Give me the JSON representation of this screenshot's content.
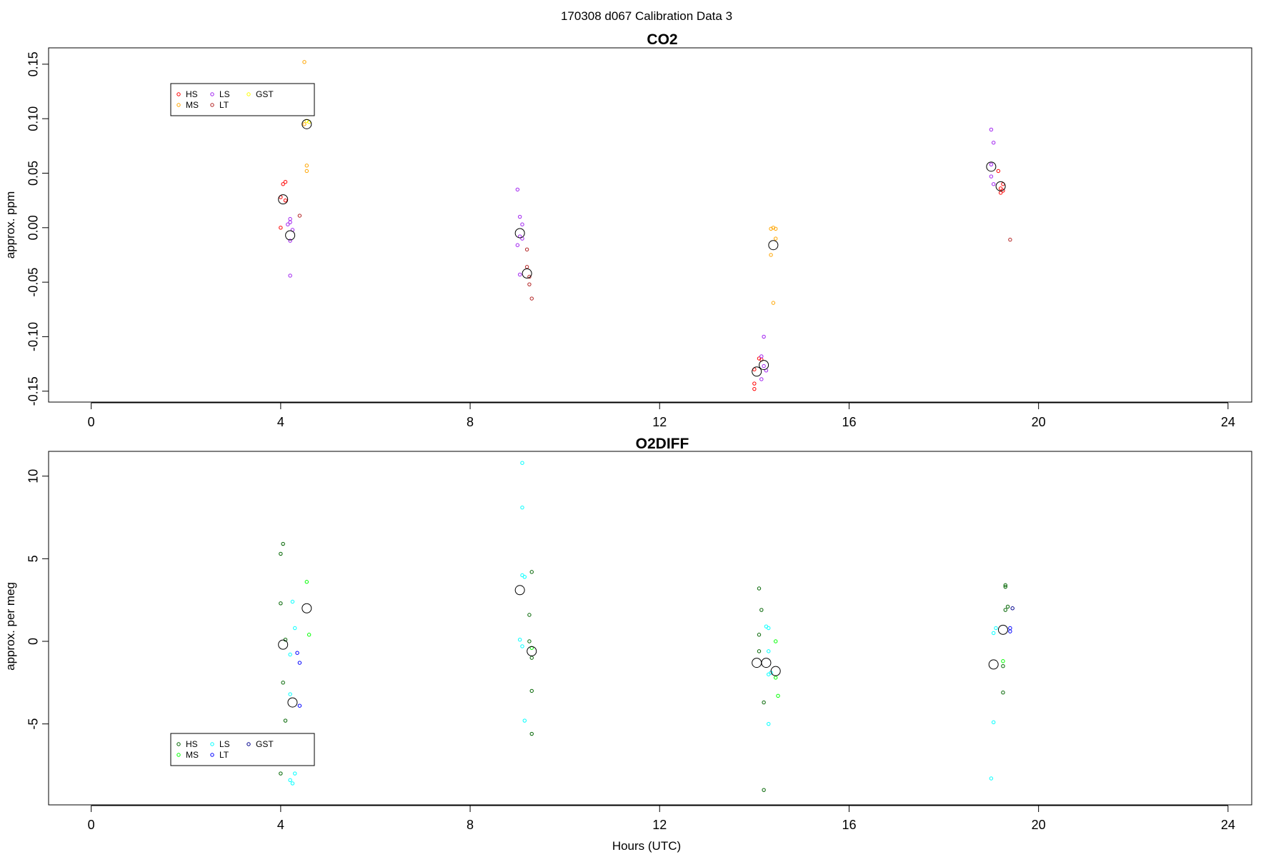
{
  "figure": {
    "suptitle": "170308   d067   Calibration Data 3",
    "xlabel": "Hours (UTC)"
  },
  "chart_data": [
    {
      "type": "scatter",
      "title": "CO2",
      "xlabel": "",
      "ylabel": "approx. ppm",
      "xlim": [
        -0.9,
        24.5
      ],
      "ylim": [
        -0.16,
        0.165
      ],
      "xticks": [
        0,
        4,
        8,
        12,
        16,
        20,
        24
      ],
      "yticks": [
        0.15,
        0.1,
        0.05,
        0.0,
        -0.05,
        -0.1,
        -0.15
      ],
      "ytick_labels": [
        "0.15",
        "0.10",
        "0.05",
        "0.00",
        "-0.05",
        "-0.10",
        "-0.15"
      ],
      "grid": false,
      "legend": {
        "placement": "top-left",
        "columns": 3,
        "entries": [
          {
            "name": "HS",
            "color": "#ff0000"
          },
          {
            "name": "MS",
            "color": "#ffa500"
          },
          {
            "name": "LS",
            "color": "#a020f0"
          },
          {
            "name": "LT",
            "color": "#b22222"
          },
          {
            "name": "GST",
            "color": "#ffff00"
          }
        ]
      },
      "series": [
        {
          "name": "HS",
          "color": "#ff0000",
          "points": [
            [
              4.0,
              0.028
            ],
            [
              4.05,
              0.04
            ],
            [
              4.1,
              0.042
            ],
            [
              4.0,
              0.0
            ],
            [
              4.1,
              0.025
            ],
            [
              14.0,
              -0.143
            ],
            [
              14.0,
              -0.148
            ],
            [
              14.1,
              -0.12
            ],
            [
              14.15,
              -0.121
            ],
            [
              14.0,
              -0.13
            ],
            [
              19.2,
              0.036
            ],
            [
              19.25,
              0.04
            ],
            [
              19.2,
              0.032
            ],
            [
              19.15,
              0.052
            ],
            [
              19.25,
              0.034
            ]
          ]
        },
        {
          "name": "MS",
          "color": "#ffa500",
          "points": [
            [
              4.5,
              0.152
            ],
            [
              4.55,
              0.057
            ],
            [
              4.55,
              0.052
            ],
            [
              4.5,
              0.095
            ],
            [
              14.35,
              -0.025
            ],
            [
              14.4,
              -0.069
            ],
            [
              14.45,
              -0.01
            ],
            [
              14.4,
              0.0
            ],
            [
              14.45,
              -0.001
            ],
            [
              14.35,
              -0.001
            ]
          ]
        },
        {
          "name": "LS",
          "color": "#a020f0",
          "points": [
            [
              4.2,
              -0.044
            ],
            [
              4.2,
              0.008
            ],
            [
              4.15,
              0.003
            ],
            [
              4.2,
              0.005
            ],
            [
              4.25,
              -0.002
            ],
            [
              4.2,
              -0.012
            ],
            [
              9.0,
              0.035
            ],
            [
              9.05,
              0.01
            ],
            [
              9.1,
              0.003
            ],
            [
              9.05,
              -0.008
            ],
            [
              9.0,
              -0.016
            ],
            [
              9.1,
              -0.01
            ],
            [
              9.05,
              -0.043
            ],
            [
              14.2,
              -0.1
            ],
            [
              14.15,
              -0.118
            ],
            [
              14.25,
              -0.131
            ],
            [
              14.2,
              -0.127
            ],
            [
              14.15,
              -0.139
            ],
            [
              19.0,
              0.09
            ],
            [
              19.05,
              0.078
            ],
            [
              19.0,
              0.058
            ],
            [
              19.0,
              0.047
            ],
            [
              19.05,
              0.04
            ]
          ]
        },
        {
          "name": "LT",
          "color": "#b22222",
          "points": [
            [
              4.4,
              0.011
            ],
            [
              9.2,
              -0.02
            ],
            [
              9.25,
              -0.052
            ],
            [
              9.3,
              -0.065
            ],
            [
              9.2,
              -0.036
            ],
            [
              9.25,
              -0.045
            ],
            [
              19.4,
              -0.011
            ]
          ]
        },
        {
          "name": "GST",
          "color": "#ffff00",
          "points": [
            [
              4.55,
              0.098
            ],
            [
              4.6,
              0.097
            ]
          ]
        }
      ],
      "means": [
        [
          4.05,
          0.026
        ],
        [
          4.2,
          -0.007
        ],
        [
          4.55,
          0.095
        ],
        [
          9.05,
          -0.005
        ],
        [
          9.2,
          -0.042
        ],
        [
          14.05,
          -0.132
        ],
        [
          14.2,
          -0.126
        ],
        [
          14.4,
          -0.016
        ],
        [
          19.0,
          0.056
        ],
        [
          19.2,
          0.038
        ]
      ]
    },
    {
      "type": "scatter",
      "title": "O2DIFF",
      "xlabel": "Hours (UTC)",
      "ylabel": "approx. per meg",
      "xlim": [
        -0.9,
        24.5
      ],
      "ylim": [
        -9.9,
        11.5
      ],
      "xticks": [
        0,
        4,
        8,
        12,
        16,
        20,
        24
      ],
      "yticks": [
        10,
        5,
        0,
        -5
      ],
      "ytick_labels": [
        "10",
        "5",
        "0",
        "-5"
      ],
      "grid": false,
      "legend": {
        "placement": "bottom-left",
        "columns": 3,
        "entries": [
          {
            "name": "HS",
            "color": "#006400"
          },
          {
            "name": "MS",
            "color": "#00ff00"
          },
          {
            "name": "LS",
            "color": "#00ffff"
          },
          {
            "name": "LT",
            "color": "#0000ff"
          },
          {
            "name": "GST",
            "color": "#00008b"
          }
        ]
      },
      "series": [
        {
          "name": "HS",
          "color": "#006400",
          "points": [
            [
              4.05,
              5.9
            ],
            [
              4.0,
              5.3
            ],
            [
              4.0,
              2.3
            ],
            [
              4.1,
              0.1
            ],
            [
              4.05,
              -2.5
            ],
            [
              4.1,
              -4.8
            ],
            [
              4.0,
              -8.0
            ],
            [
              9.3,
              4.2
            ],
            [
              9.25,
              1.6
            ],
            [
              9.25,
              0.0
            ],
            [
              9.3,
              -1.0
            ],
            [
              9.3,
              -3.0
            ],
            [
              9.3,
              -5.6
            ],
            [
              14.1,
              3.2
            ],
            [
              14.15,
              1.9
            ],
            [
              14.1,
              0.4
            ],
            [
              14.1,
              -0.6
            ],
            [
              14.2,
              -3.7
            ],
            [
              14.2,
              -9.0
            ],
            [
              19.3,
              3.3
            ],
            [
              19.3,
              3.4
            ],
            [
              19.35,
              2.1
            ],
            [
              19.3,
              1.9
            ],
            [
              19.25,
              -1.5
            ],
            [
              19.25,
              -3.1
            ]
          ]
        },
        {
          "name": "MS",
          "color": "#00ff00",
          "points": [
            [
              4.55,
              3.6
            ],
            [
              4.6,
              0.4
            ],
            [
              9.3,
              -0.4
            ],
            [
              14.45,
              0.0
            ],
            [
              14.45,
              -2.2
            ],
            [
              14.5,
              -3.3
            ],
            [
              19.25,
              -1.2
            ]
          ]
        },
        {
          "name": "LS",
          "color": "#00ffff",
          "points": [
            [
              4.25,
              2.4
            ],
            [
              4.3,
              0.8
            ],
            [
              4.2,
              -0.8
            ],
            [
              4.2,
              -3.2
            ],
            [
              4.2,
              -8.4
            ],
            [
              4.25,
              -8.6
            ],
            [
              4.3,
              -8.0
            ],
            [
              9.1,
              10.8
            ],
            [
              9.1,
              8.1
            ],
            [
              9.1,
              4.0
            ],
            [
              9.15,
              3.9
            ],
            [
              9.05,
              0.1
            ],
            [
              9.1,
              -0.3
            ],
            [
              9.15,
              -4.8
            ],
            [
              14.25,
              0.9
            ],
            [
              14.3,
              0.8
            ],
            [
              14.3,
              -0.6
            ],
            [
              14.3,
              -2.0
            ],
            [
              14.35,
              -1.9
            ],
            [
              14.3,
              -5.0
            ],
            [
              19.05,
              0.5
            ],
            [
              19.1,
              0.8
            ],
            [
              19.05,
              -4.9
            ],
            [
              19.0,
              -8.3
            ]
          ]
        },
        {
          "name": "LT",
          "color": "#0000ff",
          "points": [
            [
              4.35,
              -0.7
            ],
            [
              4.4,
              -1.3
            ],
            [
              4.4,
              -3.9
            ],
            [
              19.4,
              0.8
            ],
            [
              19.4,
              0.6
            ]
          ]
        },
        {
          "name": "GST",
          "color": "#00008b",
          "points": [
            [
              19.45,
              2.0
            ]
          ]
        }
      ],
      "means": [
        [
          4.05,
          -0.2
        ],
        [
          4.25,
          -3.7
        ],
        [
          4.55,
          2.0
        ],
        [
          9.05,
          3.1
        ],
        [
          9.3,
          -0.6
        ],
        [
          14.05,
          -1.3
        ],
        [
          14.25,
          -1.3
        ],
        [
          14.45,
          -1.8
        ],
        [
          19.05,
          -1.4
        ],
        [
          19.25,
          0.7
        ]
      ]
    }
  ]
}
